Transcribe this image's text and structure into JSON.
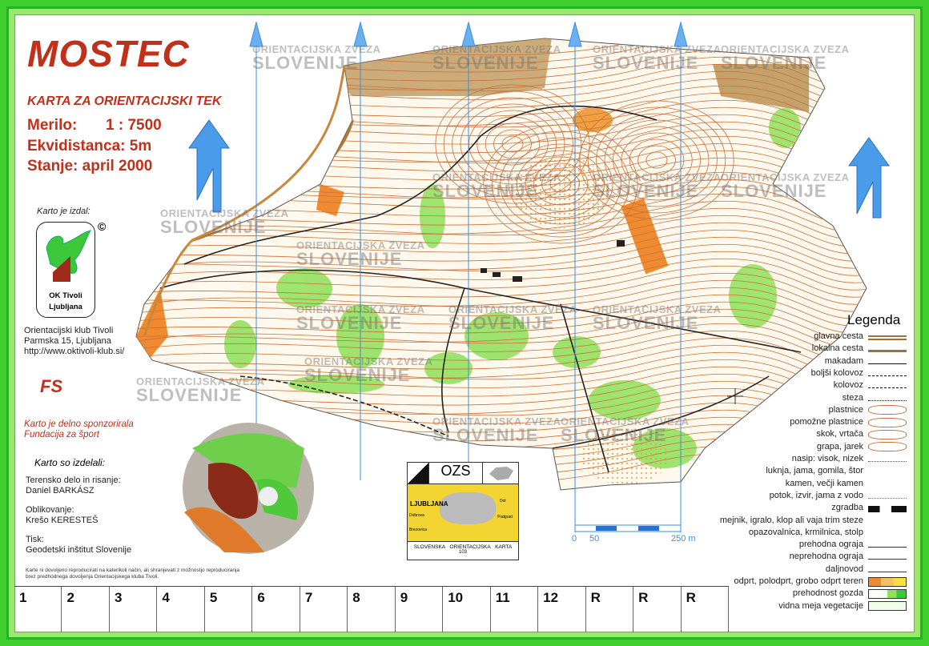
{
  "header": {
    "title": "MOSTEC",
    "subtitle": "KARTA ZA ORIENTACIJSKI TEK",
    "scale_label": "Merilo:",
    "scale_value": "1 : 7500",
    "contour_label": "Ekvidistanca:",
    "contour_value": "5m",
    "date_label": "Stanje:",
    "date_value": "april 2000"
  },
  "publisher": {
    "label": "Karto je izdal:",
    "logo_text_1": "OK Tivoli",
    "logo_text_2": "Ljubljana",
    "copyright": "©",
    "address": [
      "Orientacijski klub Tivoli",
      "Parmska 15, Ljubljana",
      "http://www.oktivoli-klub.si/"
    ]
  },
  "sponsor": {
    "logo": "FS",
    "text_1": "Karto je delno sponzorirala",
    "text_2": "Fundacija za šport"
  },
  "credits": {
    "heading": "Karto so izdelali:",
    "items": [
      {
        "role": "Terensko delo in risanje:",
        "name": "Daniel BARKÁSZ"
      },
      {
        "role": "Oblikovanje:",
        "name": "Krešo KERESTEŠ"
      },
      {
        "role": "Tisk:",
        "name": "Geodetski inštitut Slovenije"
      }
    ],
    "notice_1": "Karte ni dovoljeno reproducirati na katerikoli način, ali shranjevati z možnostjo reproduciranja",
    "notice_2": "brez predhodnega dovoljenja Orientacijskega kluba Tivoli."
  },
  "watermark": {
    "line1": "ORIENTACIJSKA ZVEZA",
    "line2": "SLOVENIJE"
  },
  "ozs_box": {
    "title": "OZS",
    "city": "LJUBLJANA",
    "places": [
      "Dobrova",
      "Brezovica",
      "Dol",
      "Podgrad"
    ],
    "caption": "SLOVENSKA ORIENTACIJSKA KARTA",
    "number": "103"
  },
  "scale_bar": {
    "labels": [
      "0",
      "50",
      "250 m"
    ]
  },
  "legend": {
    "title": "Legenda",
    "items": [
      {
        "label": "glavna cesta",
        "sym": "double-brown"
      },
      {
        "label": "lokalna cesta",
        "sym": "brown"
      },
      {
        "label": "makadam",
        "sym": "solid"
      },
      {
        "label": "boljši kolovoz",
        "sym": "longdash"
      },
      {
        "label": "kolovoz",
        "sym": "dash"
      },
      {
        "label": "steza",
        "sym": "dot"
      },
      {
        "label": "plastnice",
        "sym": "contour"
      },
      {
        "label": "pomožne plastnice",
        "sym": "contour"
      },
      {
        "label": "skok, vrtača",
        "sym": "contour"
      },
      {
        "label": "grapa, jarek",
        "sym": "contour"
      },
      {
        "label": "nasip: visok, nizek",
        "sym": "browndot"
      },
      {
        "label": "luknja, jama, gomila, štor",
        "sym": "dots"
      },
      {
        "label": "kamen, večji kamen",
        "sym": "stones"
      },
      {
        "label": "potok, izvir, jama z vodo",
        "sym": "water"
      },
      {
        "label": "zgradba",
        "sym": "building"
      },
      {
        "label": "mejnik, igralo, klop ali vaja trim steze",
        "sym": "marks"
      },
      {
        "label": "opazovalnica, krmilnica, stolp",
        "sym": "towers"
      },
      {
        "label": "prehodna ograja",
        "sym": "fence"
      },
      {
        "label": "neprehodna ograja",
        "sym": "fence"
      },
      {
        "label": "daljnovod",
        "sym": "fence"
      },
      {
        "label": "odprt, polodprt, grobo odprt teren",
        "sym": "open"
      },
      {
        "label": "prehodnost gozda",
        "sym": "forest"
      },
      {
        "label": "vidna meja vegetacije",
        "sym": "veg"
      }
    ]
  },
  "controls": [
    "1",
    "2",
    "3",
    "4",
    "5",
    "6",
    "7",
    "8",
    "9",
    "10",
    "11",
    "12",
    "R",
    "R",
    "R"
  ],
  "colors": {
    "brand_red": "#c0301a",
    "north_blue": "#3a8fe0",
    "frame_green": "#3fcf2f",
    "contour_brown": "#c8703a",
    "forest_green": "#7cd84a"
  }
}
